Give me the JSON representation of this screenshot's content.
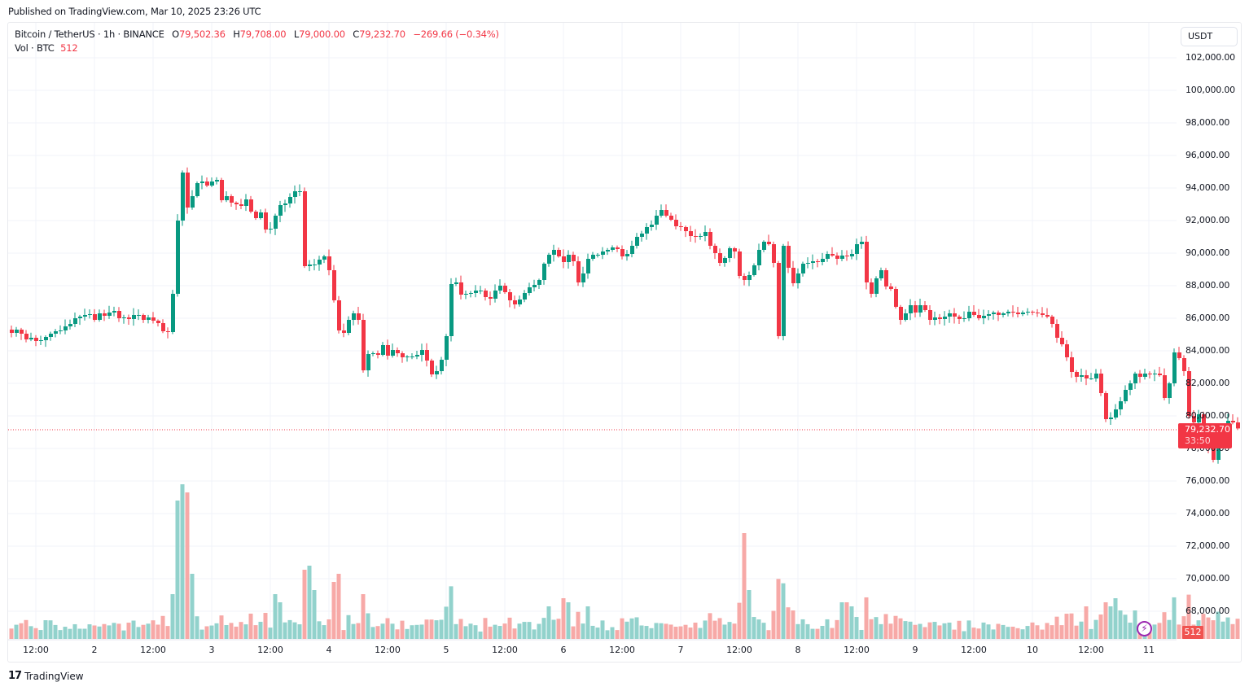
{
  "header": {
    "published": "Published on TradingView.com, Mar 10, 2025 23:26 UTC"
  },
  "legend": {
    "symbol": "Bitcoin / TetherUS · 1h · BINANCE",
    "open_label": "O",
    "open": "79,502.36",
    "high_label": "H",
    "high": "79,708.00",
    "low_label": "L",
    "low": "79,000.00",
    "close_label": "C",
    "close": "79,232.70",
    "change": "−269.66 (−0.34%)",
    "volume_label": "Vol · BTC",
    "volume": "512"
  },
  "price_axis": {
    "currency": "USDT",
    "labels": [
      "102,000.00",
      "100,000.00",
      "98,000.00",
      "96,000.00",
      "94,000.00",
      "92,000.00",
      "90,000.00",
      "88,000.00",
      "86,000.00",
      "84,000.00",
      "82,000.00",
      "80,000.00",
      "78,000.00",
      "76,000.00",
      "74,000.00",
      "72,000.00",
      "70,000.00",
      "68,000.00"
    ],
    "current_price": "79,232.70",
    "countdown": "33:50",
    "volume_badge": "512"
  },
  "time_axis": {
    "labels": [
      "12:00",
      "2",
      "12:00",
      "3",
      "12:00",
      "4",
      "12:00",
      "5",
      "12:00",
      "6",
      "12:00",
      "7",
      "12:00",
      "8",
      "12:00",
      "9",
      "12:00",
      "10",
      "12:00",
      "11"
    ]
  },
  "footer": {
    "logo_mark": "17",
    "logo_text": "TradingView"
  },
  "colors": {
    "up": "#089981",
    "down": "#f23645",
    "up_volume": "#92d2cc",
    "down_volume": "#f7a9a7",
    "grid": "#f0f3fa",
    "last_price_line": "#f23645"
  },
  "chart_data": {
    "type": "candlestick",
    "title": "Bitcoin / TetherUS · 1h · BINANCE",
    "interval": "1h",
    "xlabel": "",
    "ylabel": "USDT",
    "ylim": [
      66000,
      103000
    ],
    "x_ticks": [
      "12:00",
      "2",
      "12:00",
      "3",
      "12:00",
      "4",
      "12:00",
      "5",
      "12:00",
      "6",
      "12:00",
      "7",
      "12:00",
      "8",
      "12:00",
      "9",
      "12:00",
      "10",
      "12:00",
      "11"
    ],
    "first_candle": "Mar 1 07:00",
    "closes": [
      85100,
      85300,
      85050,
      84700,
      84800,
      84600,
      84650,
      84850,
      85050,
      85200,
      85250,
      85500,
      85650,
      86000,
      86100,
      86200,
      86250,
      85900,
      86300,
      86150,
      86350,
      86450,
      86000,
      86050,
      85950,
      86200,
      86200,
      85900,
      86050,
      85850,
      85700,
      85200,
      85150,
      87500,
      92000,
      94950,
      92800,
      93500,
      94300,
      94400,
      94150,
      94400,
      94500,
      93250,
      93500,
      93100,
      93000,
      92900,
      93300,
      92550,
      92150,
      92500,
      91450,
      91500,
      92300,
      92950,
      93050,
      93450,
      93800,
      93800,
      89200,
      89300,
      89300,
      89600,
      89800,
      88950,
      87100,
      85250,
      85100,
      85900,
      86300,
      85900,
      82800,
      83800,
      83850,
      83750,
      84350,
      83700,
      84050,
      83850,
      83600,
      83650,
      83650,
      83750,
      84050,
      83400,
      82550,
      82750,
      83450,
      84900,
      88100,
      88200,
      87450,
      87500,
      87550,
      87700,
      87700,
      87300,
      87200,
      87700,
      88000,
      87600,
      87100,
      86850,
      87150,
      87550,
      87900,
      88050,
      88350,
      89350,
      89900,
      90200,
      89800,
      89450,
      89900,
      89500,
      88200,
      88750,
      89650,
      89900,
      89900,
      90100,
      90200,
      90350,
      90250,
      89800,
      89950,
      90450,
      91000,
      91200,
      91600,
      91750,
      92300,
      92650,
      92300,
      92050,
      91650,
      91600,
      91350,
      91050,
      91000,
      91050,
      91300,
      90450,
      90000,
      89400,
      89700,
      90300,
      90100,
      88600,
      88350,
      88650,
      89250,
      90200,
      90700,
      90550,
      89400,
      84900,
      90450,
      89100,
      88150,
      88750,
      89350,
      89400,
      89500,
      89450,
      89650,
      89950,
      89850,
      89650,
      89850,
      89800,
      89950,
      90550,
      90700,
      88200,
      87500,
      88450,
      88950,
      87950,
      87800,
      86700,
      85900,
      86300,
      86800,
      86350,
      86800,
      86500,
      85900,
      86050,
      85950,
      86100,
      86300,
      86100,
      85950,
      86000,
      86400,
      86200,
      86000,
      86150,
      86250,
      86350,
      86200,
      86300,
      86400,
      86350,
      86250,
      86350,
      86400,
      86350,
      86300,
      86200,
      86100,
      85650,
      84800,
      84400,
      83600,
      82700,
      82400,
      82500,
      82300,
      82300,
      82600,
      81400,
      79800,
      79900,
      80400,
      80900,
      81600,
      82000,
      82600,
      82400,
      82600,
      82550,
      82600,
      82500,
      81100,
      82000,
      83900,
      83550,
      82750,
      80000,
      79600,
      80100,
      79000,
      78000,
      77300,
      78700,
      79300,
      79700,
      79600,
      79230
    ]
  }
}
